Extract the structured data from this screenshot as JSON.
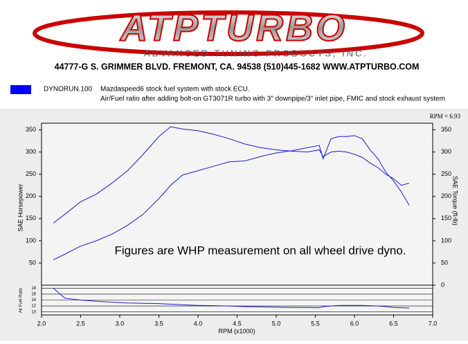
{
  "header": {
    "logo": "ATPTURBO",
    "tagline": "ADVANCED TUNING PRODUCTS, INC.",
    "address": "44777-G S. GRIMMER BLVD. FREMONT, CA. 94538 (510)445-1682 WWW.ATPTURBO.COM"
  },
  "run": {
    "color": "#0000ff",
    "name": "DYNORUN.100",
    "line1": "Mazdaspeed6 stock fuel system with stock ECU.",
    "line2": "Air/Fuel ratio after adding bolt-on GT3071R turbo with 3\" downpipe/3\" inlet pipe, FMIC and stock exhaust system"
  },
  "chart_data": {
    "type": "line",
    "readout": "RPM = 6.93",
    "annotation": "Figures are WHP measurement on all wheel drive dyno.",
    "x_label": "RPM (x1000)",
    "y_label": "SAE Horsepower",
    "y2_label": "SAE Torque (ft-lb)",
    "afr_label": "Air Fuel Ratio",
    "x": [
      2.15,
      2.3,
      2.5,
      2.7,
      2.9,
      3.1,
      3.3,
      3.5,
      3.65,
      3.8,
      4.0,
      4.2,
      4.4,
      4.6,
      4.8,
      5.0,
      5.2,
      5.4,
      5.55,
      5.6,
      5.7,
      5.8,
      5.9,
      6.0,
      6.1,
      6.2,
      6.3,
      6.4,
      6.5,
      6.6,
      6.7
    ],
    "series": [
      {
        "name": "SAE Horsepower",
        "color": "#1a1ad0",
        "values": [
          57,
          70,
          88,
          100,
          115,
          135,
          160,
          195,
          225,
          248,
          258,
          268,
          278,
          280,
          290,
          298,
          303,
          310,
          315,
          285,
          330,
          335,
          335,
          337,
          330,
          305,
          285,
          255,
          235,
          210,
          180
        ]
      },
      {
        "name": "SAE Torque (ft-lb)",
        "color": "#1a1ad0",
        "axis": "y2",
        "values": [
          140,
          160,
          188,
          205,
          230,
          258,
          295,
          335,
          357,
          352,
          348,
          340,
          330,
          318,
          310,
          305,
          302,
          300,
          305,
          290,
          300,
          302,
          300,
          295,
          288,
          275,
          265,
          250,
          240,
          225,
          230
        ]
      },
      {
        "name": "Air Fuel Ratio",
        "color": "#1a1ad0",
        "axis": "afr",
        "values": [
          18,
          14.6,
          14,
          13.6,
          13.3,
          13,
          12.9,
          12.8,
          12.6,
          12.4,
          12.2,
          12.1,
          12,
          11.8,
          11.7,
          11.6,
          11.5,
          11.5,
          11.4,
          11.8,
          12,
          12.2,
          12.2,
          12.2,
          12.2,
          12.1,
          12,
          11.8,
          11.5,
          11.4,
          11.3
        ]
      }
    ],
    "xlim": [
      2,
      7
    ],
    "xticks": [
      {
        "value": 2,
        "label": "2.0"
      },
      2.5,
      {
        "value": 3,
        "label": "3.0"
      },
      3.5,
      {
        "value": 4,
        "label": "4.0"
      },
      4.5,
      {
        "value": 5,
        "label": "5.0"
      },
      5.5,
      {
        "value": 6,
        "label": "6.0"
      },
      6.5,
      {
        "value": 7,
        "label": "7.0"
      }
    ],
    "ylim": [
      0,
      365
    ],
    "yticks": [
      50,
      100,
      150,
      200,
      250,
      300,
      350
    ],
    "y2lim": [
      0,
      365
    ],
    "y2ticks": [
      0,
      50,
      100,
      150,
      200,
      250,
      300,
      350
    ],
    "afrlim": [
      9,
      19
    ],
    "afrticks": [
      10,
      12,
      14,
      16,
      18
    ]
  }
}
